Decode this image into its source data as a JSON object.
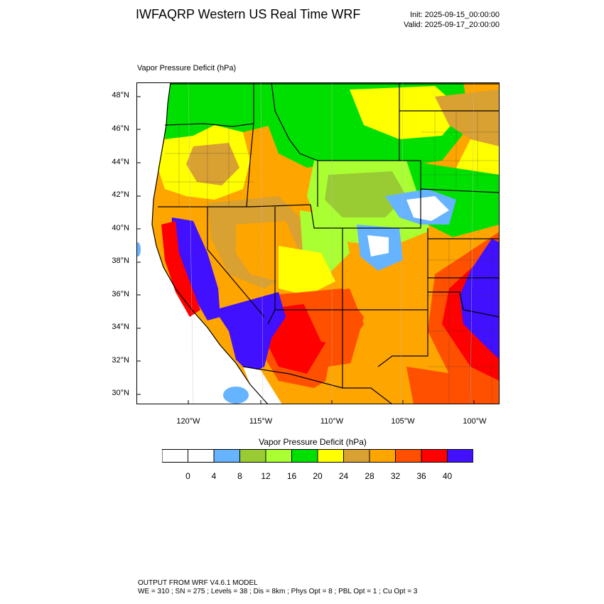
{
  "header": {
    "title": "IWFAQRP Western US Real Time WRF",
    "init": "Init: 2025-09-15_00:00:00",
    "valid": "Valid: 2025-09-17_20:00:00"
  },
  "map": {
    "title": "Vapor Pressure Deficit   (hPa)",
    "lat_labels": [
      "48°N",
      "46°N",
      "44°N",
      "42°N",
      "40°N",
      "38°N",
      "36°N",
      "34°N",
      "32°N",
      "30°N"
    ],
    "lon_labels": [
      "120°W",
      "115°W",
      "110°W",
      "105°W",
      "100°W"
    ]
  },
  "colorbar": {
    "title": "Vapor Pressure Deficit  (hPa)",
    "labels": [
      "0",
      "4",
      "8",
      "12",
      "16",
      "20",
      "24",
      "28",
      "32",
      "36",
      "40"
    ],
    "colors": [
      "#ffffff",
      "#ffffff",
      "#66b3ff",
      "#99cc33",
      "#aaff33",
      "#00e000",
      "#ffff00",
      "#d9a032",
      "#ffa500",
      "#ff5000",
      "#ff0000",
      "#4010ff"
    ]
  },
  "footer": {
    "line1": "OUTPUT FROM WRF V4.6.1 MODEL",
    "line2": "WE = 310 ; SN = 275 ; Levels = 38 ; Dis = 8km ; Phys Opt = 8 ; PBL Opt = 1 ; Cu Opt = 3"
  }
}
